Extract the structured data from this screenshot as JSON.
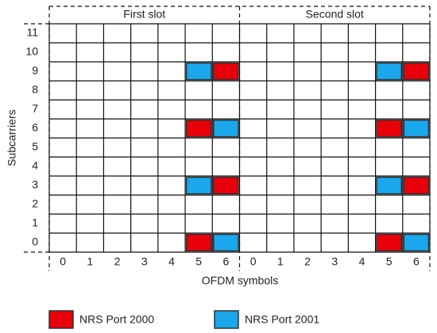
{
  "header": {
    "slots": [
      "First slot",
      "Second slot"
    ]
  },
  "x_axis": {
    "label": "OFDM symbols",
    "ticks": [
      "0",
      "1",
      "2",
      "3",
      "4",
      "5",
      "6",
      "0",
      "1",
      "2",
      "3",
      "4",
      "5",
      "6"
    ]
  },
  "y_axis": {
    "label": "Subcarriers",
    "ticks": [
      "0",
      "1",
      "2",
      "3",
      "4",
      "5",
      "6",
      "7",
      "8",
      "9",
      "10",
      "11"
    ]
  },
  "legend": [
    {
      "label": "NRS Port 2000",
      "color": "#e8000b"
    },
    {
      "label": "NRS Port 2001",
      "color": "#1aa7ec"
    }
  ]
}
